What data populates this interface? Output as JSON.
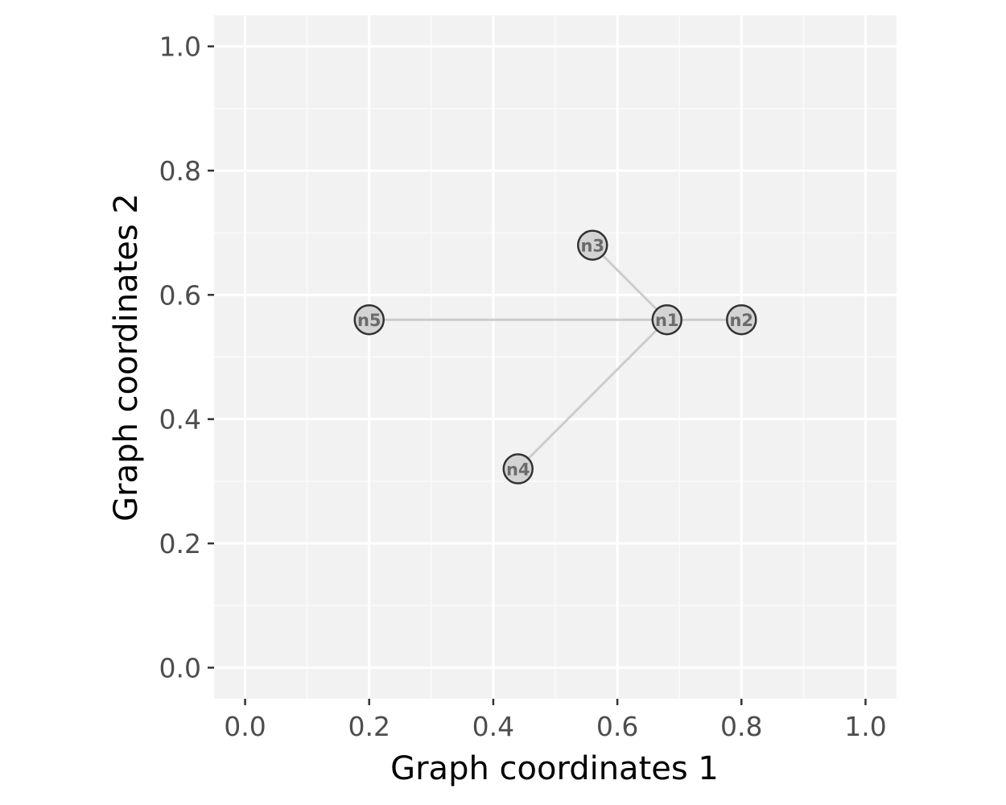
{
  "chart_data": {
    "type": "scatter",
    "subtype": "network-graph",
    "xlabel": "Graph coordinates 1",
    "ylabel": "Graph coordinates 2",
    "xlim": [
      -0.05,
      1.05
    ],
    "ylim": [
      -0.05,
      1.05
    ],
    "x_ticks": [
      "0.0",
      "0.2",
      "0.4",
      "0.6",
      "0.8",
      "1.0"
    ],
    "y_ticks": [
      "0.0",
      "0.2",
      "0.4",
      "0.6",
      "0.8",
      "1.0"
    ],
    "grid": true,
    "nodes": [
      {
        "id": "n1",
        "x": 0.68,
        "y": 0.56
      },
      {
        "id": "n2",
        "x": 0.8,
        "y": 0.56
      },
      {
        "id": "n3",
        "x": 0.56,
        "y": 0.68
      },
      {
        "id": "n4",
        "x": 0.44,
        "y": 0.32
      },
      {
        "id": "n5",
        "x": 0.2,
        "y": 0.56
      }
    ],
    "edges": [
      {
        "from": "n1",
        "to": "n2"
      },
      {
        "from": "n1",
        "to": "n3"
      },
      {
        "from": "n1",
        "to": "n4"
      },
      {
        "from": "n1",
        "to": "n5"
      }
    ],
    "colors": {
      "panel_background": "#f2f2f2",
      "grid_major": "#ffffff",
      "grid_minor": "#fafafa",
      "edge": "#cccccc",
      "node_fill": "#d3d3d3",
      "node_stroke": "#333333",
      "node_label": "#6b6b6b"
    }
  }
}
